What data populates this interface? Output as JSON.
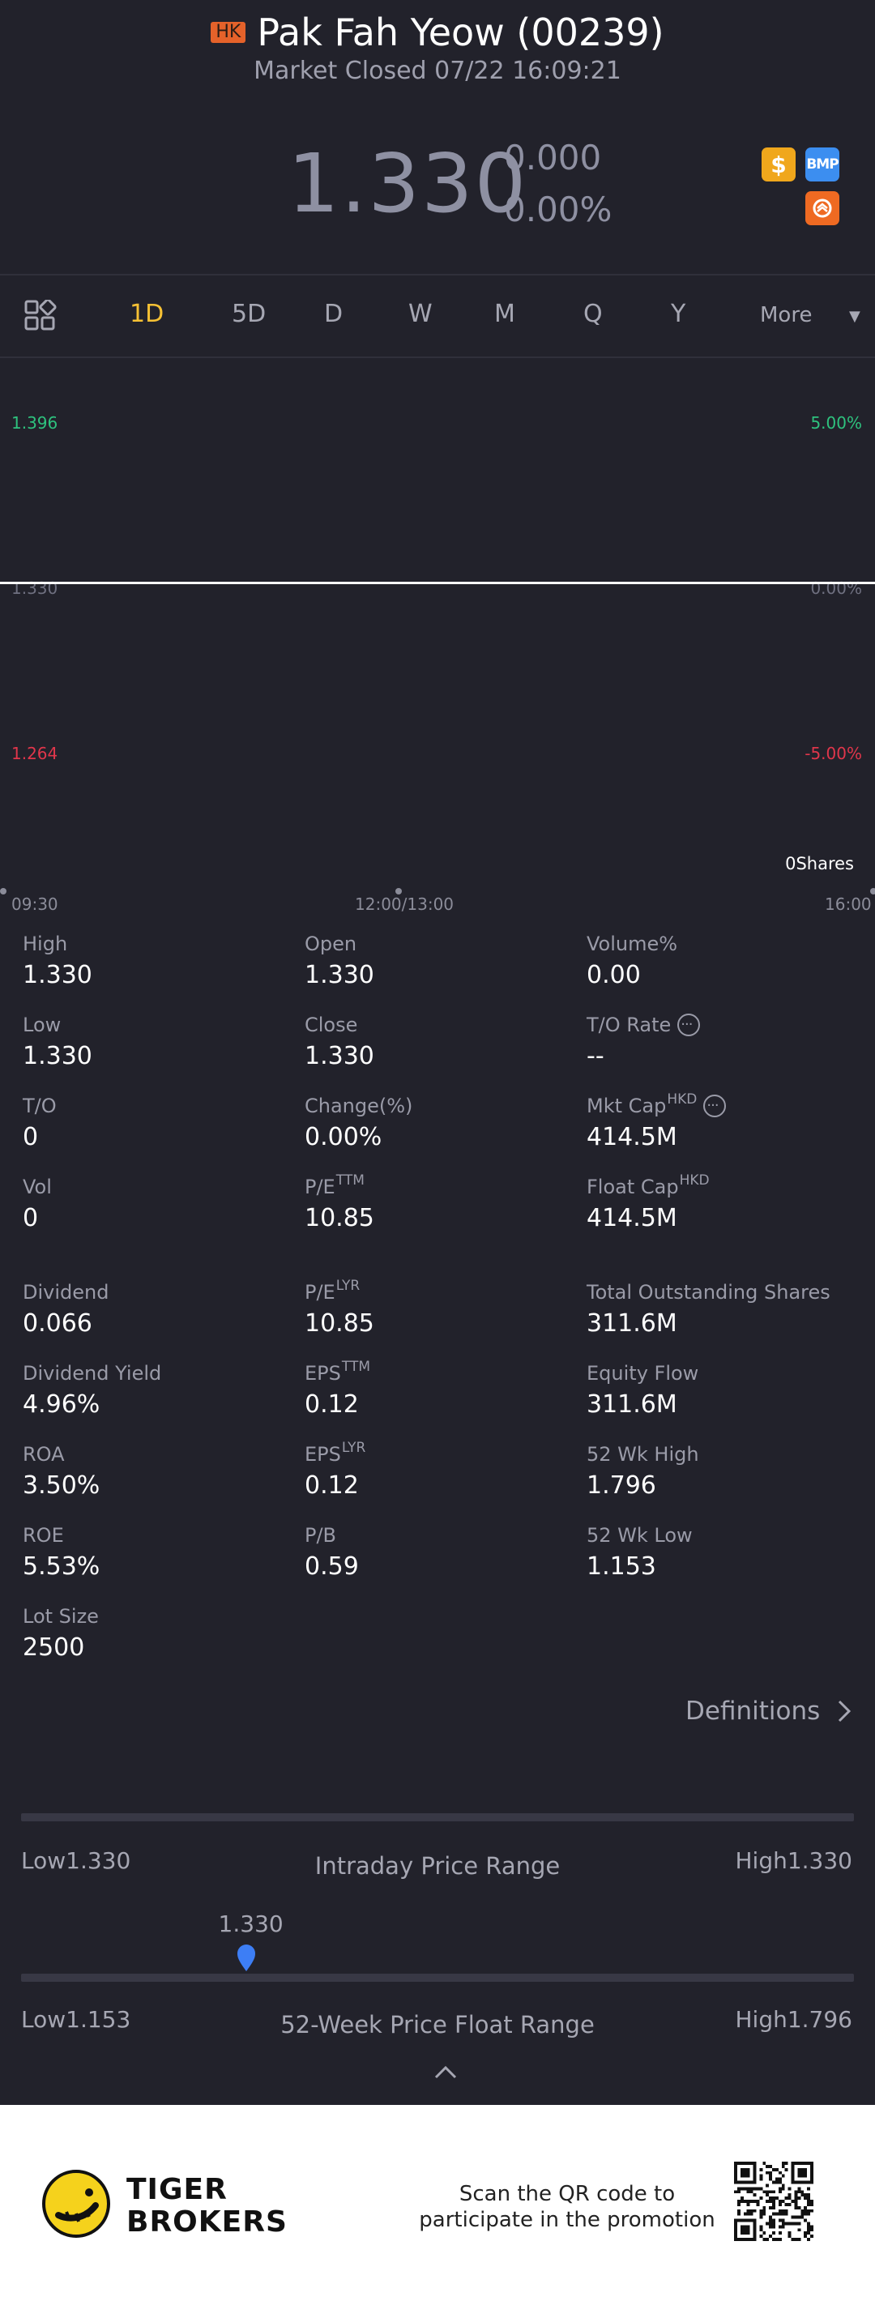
{
  "header": {
    "market_badge": "HK",
    "title": "Pak Fah Yeow (00239)",
    "status": "Market Closed 07/22 16:09:21",
    "price": "1.330",
    "change": "0.000",
    "change_pct": "0.00%",
    "icons": [
      "coin-icon",
      "bmp-icon",
      "swap-icon"
    ],
    "bmp_label": "BMP",
    "coin_symbol": "$"
  },
  "tabs": {
    "items": [
      "1D",
      "5D",
      "D",
      "W",
      "M",
      "Q",
      "Y"
    ],
    "active": "1D",
    "more": "More"
  },
  "chart": {
    "upper_price": "1.396",
    "upper_pct": "5.00%",
    "mid_price": "1.330",
    "mid_pct": "0.00%",
    "lower_price": "1.264",
    "lower_pct": "-5.00%",
    "volume_label": "0Shares",
    "time_start": "09:30",
    "time_mid": "12:00/13:00",
    "time_end": "16:00",
    "colors": {
      "up": "#2ec27e",
      "down": "#e0364b",
      "line": "#ffffff"
    }
  },
  "stats": [
    {
      "label": "High",
      "sup": "",
      "value": "1.330"
    },
    {
      "label": "Open",
      "sup": "",
      "value": "1.330"
    },
    {
      "label": "Volume%",
      "sup": "",
      "value": "0.00"
    },
    {
      "label": "Low",
      "sup": "",
      "value": "1.330"
    },
    {
      "label": "Close",
      "sup": "",
      "value": "1.330"
    },
    {
      "label": "T/O Rate",
      "sup": "",
      "value": "--"
    },
    {
      "label": "T/O",
      "sup": "",
      "value": "0"
    },
    {
      "label": "Change(%)",
      "sup": "",
      "value": "0.00%"
    },
    {
      "label": "Mkt Cap",
      "sup": "HKD",
      "value": "414.5M"
    },
    {
      "label": "Vol",
      "sup": "",
      "value": "0"
    },
    {
      "label": "P/E",
      "sup": "TTM",
      "value": "10.85"
    },
    {
      "label": "Float Cap",
      "sup": "HKD",
      "value": "414.5M"
    },
    {
      "label": "Dividend",
      "sup": "",
      "value": "0.066"
    },
    {
      "label": "P/E",
      "sup": "LYR",
      "value": "10.85"
    },
    {
      "label": "Total Outstanding Shares",
      "sup": "",
      "value": "311.6M"
    },
    {
      "label": "Dividend Yield",
      "sup": "",
      "value": "4.96%"
    },
    {
      "label": "EPS",
      "sup": "TTM",
      "value": "0.12"
    },
    {
      "label": "Equity Flow",
      "sup": "",
      "value": "311.6M"
    },
    {
      "label": "ROA",
      "sup": "",
      "value": "3.50%"
    },
    {
      "label": "EPS",
      "sup": "LYR",
      "value": "0.12"
    },
    {
      "label": "52 Wk High",
      "sup": "",
      "value": "1.796"
    },
    {
      "label": "ROE",
      "sup": "",
      "value": "5.53%"
    },
    {
      "label": "P/B",
      "sup": "",
      "value": "0.59"
    },
    {
      "label": "52 Wk Low",
      "sup": "",
      "value": "1.153"
    },
    {
      "label": "Lot Size",
      "sup": "",
      "value": "2500"
    }
  ],
  "definitions_label": "Definitions",
  "intraday_range": {
    "low": "Low1.330",
    "title": "Intraday Price Range",
    "high": "High1.330"
  },
  "week52_range": {
    "current": "1.330",
    "current_fraction": 0.27,
    "low": "Low1.153",
    "title": "52-Week Price Float Range",
    "high": "High1.796",
    "pin_color": "#3d7ef5"
  },
  "footer": {
    "brand_line1": "TIGER",
    "brand_line2": "BROKERS",
    "promo_line1": "Scan the QR code to",
    "promo_line2": "participate in the promotion",
    "brand_color": "#f5d21c"
  }
}
